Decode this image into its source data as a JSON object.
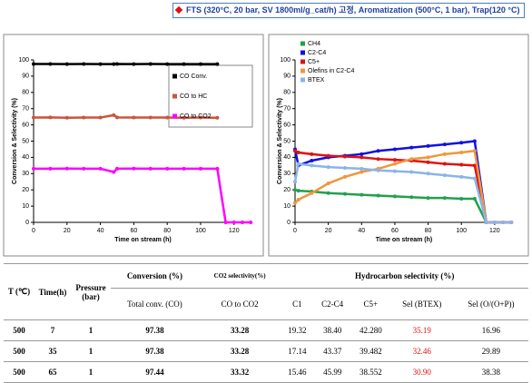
{
  "header": {
    "title": "FTS (320°C, 20 bar, SV 1800ml/g_cat/h) 고정, Aromatization (500°C, 1 bar), Trap(120 °C)"
  },
  "chart_data": [
    {
      "type": "scatter",
      "xlabel": "Time on stream (h)",
      "ylabel": "Conversion & Selectivity (%)",
      "x": [
        0,
        10,
        20,
        30,
        40,
        48,
        50,
        60,
        70,
        80,
        90,
        100,
        110,
        115,
        120,
        125,
        130
      ],
      "xlim": [
        0,
        131
      ],
      "xticks": [
        0,
        20,
        40,
        60,
        80,
        100,
        120
      ],
      "ylim": [
        0,
        100
      ],
      "yticks": [
        0,
        10,
        20,
        30,
        40,
        50,
        60,
        70,
        80,
        90,
        100
      ],
      "grid": false,
      "legend": "upper right",
      "series": [
        {
          "name": "CO Conv.",
          "color": "#000000",
          "values": [
            97.5,
            97.5,
            97.4,
            97.5,
            97.4,
            97.4,
            97.5,
            97.4,
            97.5,
            97.4,
            97.4,
            97.4,
            97.4,
            null,
            null,
            null,
            null
          ]
        },
        {
          "name": "CO to HC",
          "color": "#c8553d",
          "values": [
            64.5,
            64.6,
            64.4,
            64.5,
            64.5,
            66,
            64.6,
            64.5,
            64.5,
            64.5,
            64.4,
            64.5,
            64.4,
            null,
            null,
            null,
            null
          ]
        },
        {
          "name": "CO to CO2",
          "color": "#ff00ff",
          "values": [
            33,
            33,
            33.1,
            33,
            33,
            31,
            33,
            33.1,
            33,
            33,
            33,
            33,
            33,
            0,
            0,
            0,
            0
          ]
        }
      ]
    },
    {
      "type": "scatter",
      "xlabel": "Time on stream (h)",
      "ylabel": "Conversion & Selectivity (%)",
      "x": [
        0,
        2,
        10,
        20,
        30,
        40,
        50,
        60,
        70,
        80,
        90,
        100,
        108,
        115,
        120,
        125,
        130
      ],
      "xlim": [
        0,
        131
      ],
      "xticks": [
        0,
        20,
        40,
        60,
        80,
        100,
        120
      ],
      "ylim": [
        0,
        100
      ],
      "yticks": [
        0,
        10,
        20,
        30,
        40,
        50,
        60,
        70,
        80,
        90,
        100
      ],
      "grid": false,
      "legend": "upper left",
      "series": [
        {
          "name": "CH4",
          "color": "#22a04b",
          "values": [
            20,
            19.5,
            19,
            18,
            17.5,
            17,
            16.5,
            16,
            15.5,
            15,
            15,
            14.5,
            14.5,
            0,
            0,
            0,
            0
          ]
        },
        {
          "name": "C2-C4",
          "color": "#1010e0",
          "values": [
            45,
            35,
            38,
            40,
            41,
            42,
            44,
            45,
            46,
            47,
            48,
            49,
            50,
            0,
            0,
            0,
            0
          ]
        },
        {
          "name": "C5+",
          "color": "#e01010",
          "values": [
            44,
            43,
            42,
            41,
            40.5,
            40,
            39,
            38.5,
            38,
            37,
            36,
            35.5,
            35,
            0,
            0,
            0,
            0
          ]
        },
        {
          "name": "Olefins in C2-C4",
          "color": "#f0963c",
          "values": [
            12,
            14,
            18,
            24,
            28,
            31,
            33,
            36,
            39,
            40,
            42,
            43,
            44,
            0,
            0,
            0,
            0
          ]
        },
        {
          "name": "BTEX",
          "color": "#8ab4e8",
          "values": [
            25,
            36,
            35,
            34,
            33.5,
            33,
            32,
            31.5,
            31,
            30,
            29,
            28,
            27,
            0,
            0,
            0,
            0
          ]
        }
      ]
    }
  ],
  "table": {
    "header": [
      "T (℃)",
      "Time(h)",
      "Pressure (bar)",
      "Conversion (%)",
      "CO2 selectivity(%)",
      "Hydrocarbon selectivity (%)"
    ],
    "subheader": [
      "Total conv. (CO)",
      "CO to CO2",
      "C1",
      "C2-C4",
      "C5+",
      "Sel (BTEX)",
      "Sel (O/(O+P))"
    ],
    "rows": [
      [
        "500",
        "7",
        "1",
        "97.38",
        "33.28",
        "19.32",
        "38.40",
        "42.280",
        "35.19",
        "16.96"
      ],
      [
        "500",
        "35",
        "1",
        "97.38",
        "33.28",
        "17.14",
        "43.37",
        "39.482",
        "32.46",
        "29.89"
      ],
      [
        "500",
        "65",
        "1",
        "97.44",
        "33.32",
        "15.46",
        "45.99",
        "38.552",
        "30.90",
        "38.38"
      ]
    ]
  }
}
